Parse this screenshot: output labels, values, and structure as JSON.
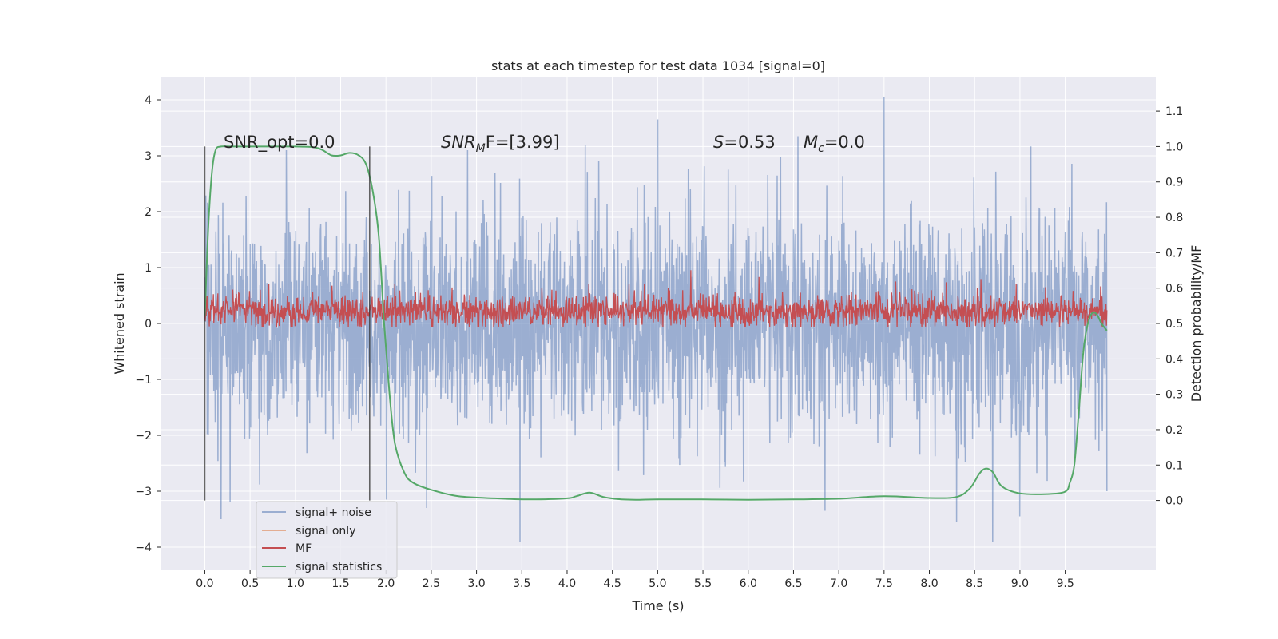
{
  "chart_data": {
    "type": "line",
    "title": "stats at each timestep for test data 1034 [signal=0]",
    "xlabel": "Time (s)",
    "ylabel": "Whitened strain",
    "y2label": "Detection probability/MF",
    "xlim": [
      -0.48,
      10.5
    ],
    "ylim": [
      -4.4,
      4.4
    ],
    "y2lim": [
      -0.195,
      1.195
    ],
    "x_ticks": [
      0.0,
      0.5,
      1.0,
      1.5,
      2.0,
      2.5,
      3.0,
      3.5,
      4.0,
      4.5,
      5.0,
      5.5,
      6.0,
      6.5,
      7.0,
      7.5,
      8.0,
      8.5,
      9.0,
      9.5
    ],
    "x_tick_labels": [
      "0.0",
      "0.5",
      "1.0",
      "1.5",
      "2.0",
      "2.5",
      "3.0",
      "3.5",
      "4.0",
      "4.5",
      "5.0",
      "5.5",
      "6.0",
      "6.5",
      "7.0",
      "7.5",
      "8.0",
      "8.5",
      "9.0",
      "9.5"
    ],
    "y_ticks": [
      -4,
      -3,
      -2,
      -1,
      0,
      1,
      2,
      3,
      4
    ],
    "y_tick_labels": [
      "−4",
      "−3",
      "−2",
      "−1",
      "0",
      "1",
      "2",
      "3",
      "4"
    ],
    "y2_ticks": [
      0.0,
      0.1,
      0.2,
      0.3,
      0.4,
      0.5,
      0.6,
      0.7,
      0.8,
      0.9,
      1.0,
      1.1
    ],
    "y2_tick_labels": [
      "0.0",
      "0.1",
      "0.2",
      "0.3",
      "0.4",
      "0.5",
      "0.6",
      "0.7",
      "0.8",
      "0.9",
      "1.0",
      "1.1"
    ],
    "grid": true,
    "legend_position": "lower-left",
    "annotations": {
      "snr_opt": "SNR_opt=0.0",
      "snr_mf_sym": "SNR",
      "snr_mf_sub": "M",
      "snr_mf_rest": "F=[3.99]",
      "s_sym": "S",
      "s_val": "=0.53",
      "mc_sym": "M",
      "mc_sub": "c",
      "mc_val": "=0.0"
    },
    "vertical_markers": [
      0.0,
      1.82
    ],
    "series": [
      {
        "name": "signal+ noise",
        "axis": "left",
        "color": "#4c72b0",
        "description_range": [
          -3.9,
          4.05
        ],
        "t_range": [
          0.0,
          9.96
        ],
        "spike_peaks": [
          [
            0.9,
            3.1
          ],
          [
            2.9,
            3.1
          ],
          [
            4.2,
            3.2
          ],
          [
            4.35,
            2.9
          ],
          [
            5.0,
            3.65
          ],
          [
            6.55,
            3.35
          ],
          [
            7.5,
            4.05
          ],
          [
            9.0,
            3.2
          ],
          [
            0.18,
            -3.5
          ],
          [
            0.28,
            -3.2
          ],
          [
            2.45,
            -3.3
          ],
          [
            6.85,
            -3.35
          ],
          [
            8.3,
            -3.55
          ],
          [
            8.7,
            -3.9
          ],
          [
            9.0,
            -3.45
          ],
          [
            9.96,
            -3.0
          ]
        ]
      },
      {
        "name": "signal only",
        "axis": "left",
        "color": "#dd8452"
      },
      {
        "name": "MF",
        "axis": "right",
        "color": "#c44e52",
        "description_range": [
          0.49,
          0.66
        ],
        "t_range": [
          0.0,
          9.96
        ]
      },
      {
        "name": "signal statistics",
        "axis": "right",
        "color": "#55a868",
        "x": [
          0.0,
          0.04,
          0.08,
          0.12,
          0.18,
          0.3,
          0.5,
          0.8,
          1.0,
          1.2,
          1.3,
          1.4,
          1.5,
          1.6,
          1.7,
          1.78,
          1.85,
          1.92,
          1.98,
          2.04,
          2.1,
          2.2,
          2.3,
          2.5,
          2.8,
          3.2,
          3.6,
          4.0,
          4.1,
          4.25,
          4.4,
          4.6,
          4.8,
          5.0,
          5.5,
          6.0,
          6.5,
          7.0,
          7.5,
          8.0,
          8.3,
          8.45,
          8.55,
          8.62,
          8.7,
          8.8,
          9.0,
          9.3,
          9.5,
          9.55,
          9.6,
          9.65,
          9.7,
          9.75,
          9.8,
          9.85,
          9.9,
          9.96
        ],
        "values": [
          0.52,
          0.78,
          0.93,
          0.99,
          1.0,
          1.0,
          1.0,
          1.0,
          1.0,
          0.998,
          0.99,
          0.975,
          0.975,
          0.982,
          0.975,
          0.95,
          0.88,
          0.75,
          0.5,
          0.3,
          0.16,
          0.08,
          0.05,
          0.03,
          0.012,
          0.006,
          0.003,
          0.006,
          0.012,
          0.022,
          0.01,
          0.003,
          0.002,
          0.003,
          0.003,
          0.002,
          0.003,
          0.005,
          0.012,
          0.007,
          0.01,
          0.035,
          0.075,
          0.09,
          0.08,
          0.04,
          0.02,
          0.018,
          0.025,
          0.05,
          0.1,
          0.25,
          0.42,
          0.5,
          0.53,
          0.525,
          0.5,
          0.48
        ]
      }
    ]
  }
}
